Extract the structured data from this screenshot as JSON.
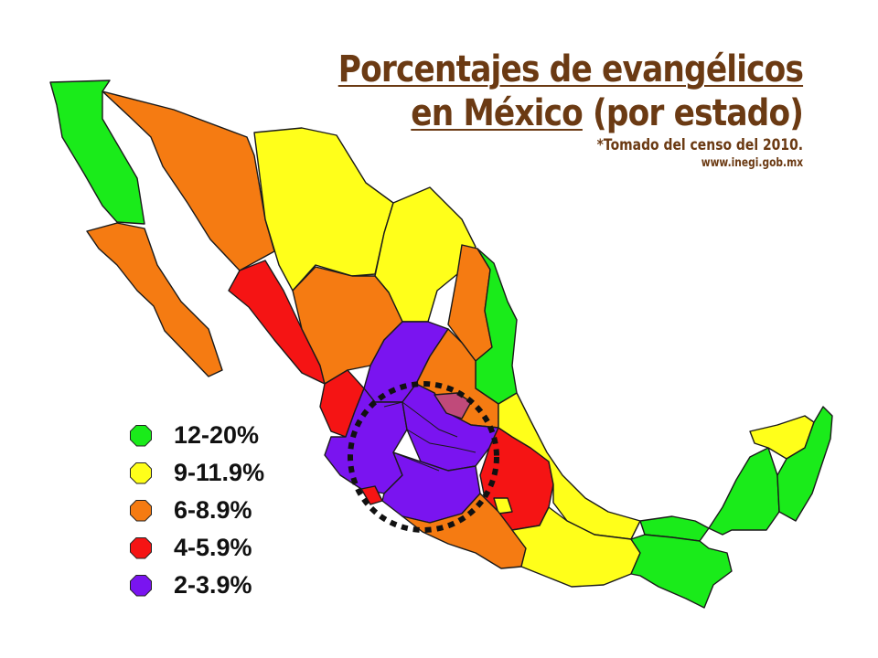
{
  "title": {
    "line1": "Porcentajes de evangélicos",
    "line2a": "en México",
    "line2b": " (por estado)",
    "note": "*Tomado del censo del 2010.",
    "url": "www.inegi.gob.mx"
  },
  "legend": [
    {
      "label": "12-20%",
      "color": "#1aeb1a",
      "icon": "green-octagon-icon"
    },
    {
      "label": "9-11.9%",
      "color": "#ffff1a",
      "icon": "yellow-octagon-icon"
    },
    {
      "label": "6-8.9%",
      "color": "#f57b12",
      "icon": "orange-octagon-icon"
    },
    {
      "label": "4-5.9%",
      "color": "#f51414",
      "icon": "red-octagon-icon"
    },
    {
      "label": "2-3.9%",
      "color": "#7a14f0",
      "icon": "purple-octagon-icon"
    }
  ],
  "colors": {
    "green": "#1aeb1a",
    "yellow": "#ffff1a",
    "orange": "#f57b12",
    "red": "#f51414",
    "purple": "#7a14f0",
    "pink": "#c04a7a",
    "title": "#6b3a13"
  },
  "annotation": "dotted-circle-around-central-states"
}
